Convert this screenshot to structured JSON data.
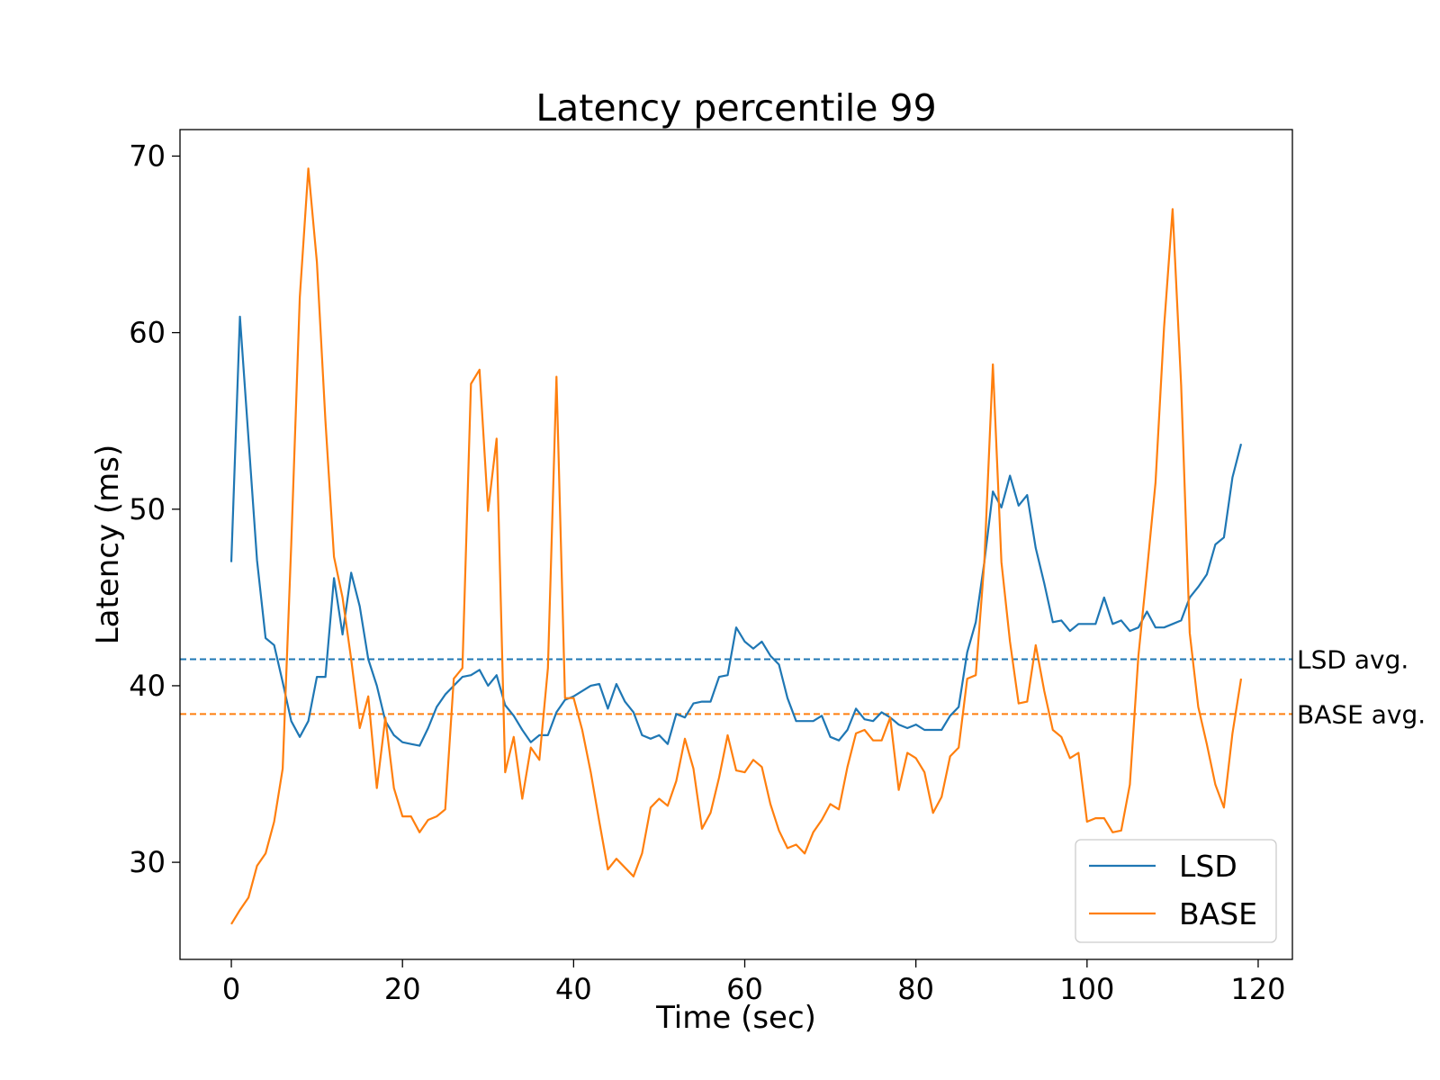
{
  "chart_data": {
    "type": "line",
    "title": "Latency percentile 99",
    "xlabel": "Time (sec)",
    "ylabel": "Latency (ms)",
    "xlim": [
      -6,
      124
    ],
    "ylim": [
      24.5,
      71.5
    ],
    "xticks": [
      0,
      20,
      40,
      60,
      80,
      100,
      120
    ],
    "xtick_labels": [
      "0",
      "20",
      "40",
      "60",
      "80",
      "100",
      "120"
    ],
    "yticks": [
      30,
      40,
      50,
      60,
      70
    ],
    "ytick_labels": [
      "30",
      "40",
      "50",
      "60",
      "70"
    ],
    "grid": false,
    "legend_position": "bottom-right",
    "series": [
      {
        "name": "LSD",
        "color": "#1f77b4",
        "x": [
          0,
          1,
          2,
          3,
          4,
          5,
          6,
          7,
          8,
          9,
          10,
          11,
          12,
          13,
          14,
          15,
          16,
          17,
          18,
          19,
          20,
          21,
          22,
          23,
          24,
          25,
          26,
          27,
          28,
          29,
          30,
          31,
          32,
          33,
          34,
          35,
          36,
          37,
          38,
          39,
          40,
          41,
          42,
          43,
          44,
          45,
          46,
          47,
          48,
          49,
          50,
          51,
          52,
          53,
          54,
          55,
          56,
          57,
          58,
          59,
          60,
          61,
          62,
          63,
          64,
          65,
          66,
          67,
          68,
          69,
          70,
          71,
          72,
          73,
          74,
          75,
          76,
          77,
          78,
          79,
          80,
          81,
          82,
          83,
          84,
          85,
          86,
          87,
          88,
          89,
          90,
          91,
          92,
          93,
          94,
          95,
          96,
          97,
          98,
          99,
          100,
          101,
          102,
          103,
          104,
          105,
          106,
          107,
          108,
          109,
          110,
          111,
          112,
          113,
          114,
          115,
          116,
          117,
          118
        ],
        "values": [
          47.0,
          60.9,
          54.0,
          47.1,
          42.7,
          42.3,
          40.2,
          38.0,
          37.1,
          38.0,
          40.5,
          40.5,
          46.1,
          42.9,
          46.4,
          44.5,
          41.5,
          40.0,
          38.0,
          37.2,
          36.8,
          36.7,
          36.6,
          37.6,
          38.8,
          39.5,
          40.0,
          40.5,
          40.6,
          40.9,
          40.0,
          40.6,
          38.9,
          38.3,
          37.5,
          36.8,
          37.2,
          37.2,
          38.5,
          39.2,
          39.4,
          39.7,
          40.0,
          40.1,
          38.7,
          40.1,
          39.1,
          38.5,
          37.2,
          37.0,
          37.2,
          36.7,
          38.4,
          38.2,
          39.0,
          39.1,
          39.1,
          40.5,
          40.6,
          43.3,
          42.5,
          42.1,
          42.5,
          41.7,
          41.2,
          39.3,
          38.0,
          38.0,
          38.0,
          38.3,
          37.1,
          36.9,
          37.5,
          38.7,
          38.1,
          38.0,
          38.5,
          38.2,
          37.8,
          37.6,
          37.8,
          37.5,
          37.5,
          37.5,
          38.3,
          38.8,
          41.9,
          43.6,
          47.0,
          51.0,
          50.1,
          51.9,
          50.2,
          50.8,
          47.8,
          45.8,
          43.6,
          43.7,
          43.1,
          43.5,
          43.5,
          43.5,
          45.0,
          43.5,
          43.7,
          43.1,
          43.3,
          44.2,
          43.3,
          43.3,
          43.5,
          43.7,
          45.0,
          45.6,
          46.3,
          48.0,
          48.4,
          51.8,
          53.7
        ]
      },
      {
        "name": "BASE",
        "color": "#ff7f0e",
        "x": [
          0,
          1,
          2,
          3,
          4,
          5,
          6,
          7,
          8,
          9,
          10,
          11,
          12,
          13,
          14,
          15,
          16,
          17,
          18,
          19,
          20,
          21,
          22,
          23,
          24,
          25,
          26,
          27,
          28,
          29,
          30,
          31,
          32,
          33,
          34,
          35,
          36,
          37,
          38,
          39,
          40,
          41,
          42,
          43,
          44,
          45,
          46,
          47,
          48,
          49,
          50,
          51,
          52,
          53,
          54,
          55,
          56,
          57,
          58,
          59,
          60,
          61,
          62,
          63,
          64,
          65,
          66,
          67,
          68,
          69,
          70,
          71,
          72,
          73,
          74,
          75,
          76,
          77,
          78,
          79,
          80,
          81,
          82,
          83,
          84,
          85,
          86,
          87,
          88,
          89,
          90,
          91,
          92,
          93,
          94,
          95,
          96,
          97,
          98,
          99,
          100,
          101,
          102,
          103,
          104,
          105,
          106,
          107,
          108,
          109,
          110,
          111,
          112,
          113,
          114,
          115,
          116,
          117,
          118
        ],
        "values": [
          26.5,
          27.3,
          28.0,
          29.8,
          30.5,
          32.3,
          35.3,
          48.0,
          62.0,
          69.3,
          64.0,
          55.0,
          47.3,
          45.0,
          41.5,
          37.6,
          39.4,
          34.2,
          38.2,
          34.2,
          32.6,
          32.6,
          31.7,
          32.4,
          32.6,
          33.0,
          40.4,
          41.0,
          57.1,
          57.9,
          49.9,
          54.0,
          35.1,
          37.1,
          33.6,
          36.5,
          35.8,
          41.0,
          57.5,
          39.3,
          39.3,
          37.5,
          35.1,
          32.3,
          29.6,
          30.2,
          29.7,
          29.2,
          30.5,
          33.1,
          33.6,
          33.2,
          34.6,
          37.0,
          35.3,
          31.9,
          32.8,
          34.8,
          37.2,
          35.2,
          35.1,
          35.8,
          35.4,
          33.3,
          31.8,
          30.8,
          31.0,
          30.5,
          31.7,
          32.4,
          33.3,
          33.0,
          35.4,
          37.3,
          37.5,
          36.9,
          36.9,
          38.2,
          34.1,
          36.2,
          35.9,
          35.1,
          32.8,
          33.7,
          36.0,
          36.5,
          40.4,
          40.6,
          47.0,
          58.2,
          47.0,
          42.5,
          39.0,
          39.1,
          42.3,
          39.7,
          37.5,
          37.1,
          35.9,
          36.2,
          32.3,
          32.5,
          32.5,
          31.7,
          31.8,
          34.4,
          41.7,
          46.5,
          51.5,
          60.3,
          67.0,
          57.0,
          43.0,
          38.8,
          36.7,
          34.4,
          33.1,
          37.3,
          40.4
        ]
      }
    ],
    "reference_lines": [
      {
        "label": "LSD avg.",
        "y": 41.5,
        "color": "#1f77b4",
        "style": "dashed"
      },
      {
        "label": "BASE avg.",
        "y": 38.4,
        "color": "#ff7f0e",
        "style": "dashed"
      }
    ]
  }
}
